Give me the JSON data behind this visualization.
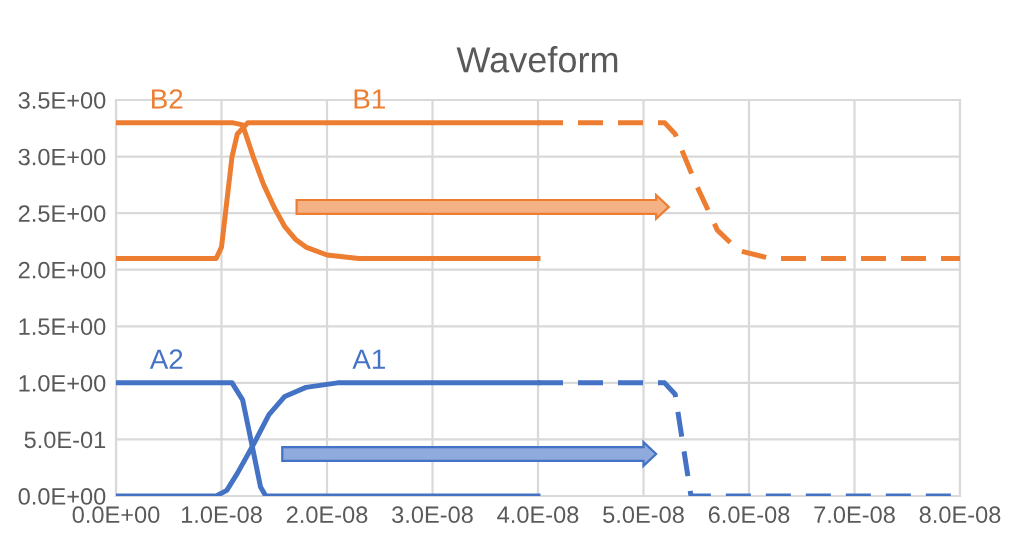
{
  "chart_data": {
    "type": "line",
    "title": "Waveform",
    "series": [
      {
        "name": "B2",
        "color": "#ed7d31",
        "x": [
          0,
          1.1e-08,
          1.2e-08,
          1.3e-08,
          1.4e-08,
          1.5e-08,
          1.6e-08,
          1.7e-08,
          1.8e-08,
          2e-08,
          2.3e-08,
          4e-08
        ],
        "values": [
          3.3,
          3.3,
          3.28,
          3.0,
          2.75,
          2.55,
          2.38,
          2.27,
          2.2,
          2.13,
          2.1,
          2.1
        ]
      },
      {
        "name": "B1",
        "color": "#ed7d31",
        "x": [
          0,
          9.5e-09,
          1e-08,
          1.05e-08,
          1.1e-08,
          1.15e-08,
          1.25e-08,
          4e-08
        ],
        "values": [
          2.1,
          2.1,
          2.2,
          2.6,
          3.0,
          3.2,
          3.3,
          3.3
        ]
      },
      {
        "color": "#ed7d31",
        "line_style": "dashed",
        "x": [
          4e-08,
          5.2e-08,
          5.3e-08,
          5.5e-08,
          5.7e-08,
          5.9e-08,
          6.2e-08,
          8e-08
        ],
        "values": [
          3.3,
          3.3,
          3.2,
          2.75,
          2.35,
          2.17,
          2.1,
          2.1
        ]
      },
      {
        "name": "A2",
        "color": "#4472c4",
        "x": [
          0,
          1.1e-08,
          1.2e-08,
          1.3e-08,
          1.37e-08,
          1.42e-08,
          4e-08
        ],
        "values": [
          1.0,
          1.0,
          0.85,
          0.4,
          0.08,
          0,
          0
        ]
      },
      {
        "name": "A1",
        "color": "#4472c4",
        "x": [
          0,
          9.5e-09,
          1.05e-08,
          1.15e-08,
          1.3e-08,
          1.45e-08,
          1.6e-08,
          1.8e-08,
          2.1e-08,
          4e-08
        ],
        "values": [
          0,
          0,
          0.05,
          0.2,
          0.45,
          0.72,
          0.88,
          0.96,
          1.0,
          1.0
        ]
      },
      {
        "color": "#4472c4",
        "line_style": "dashed",
        "x": [
          4e-08,
          5.2e-08,
          5.3e-08,
          5.4e-08,
          5.45e-08,
          8e-08
        ],
        "values": [
          1.0,
          1.0,
          0.9,
          0.3,
          0,
          0
        ]
      }
    ],
    "xlim": [
      0,
      8e-08
    ],
    "xticks": [
      {
        "value": 0,
        "label": "0.0E+00"
      },
      {
        "value": 1e-08,
        "label": "1.0E-08"
      },
      {
        "value": 2e-08,
        "label": "2.0E-08"
      },
      {
        "value": 3e-08,
        "label": "3.0E-08"
      },
      {
        "value": 4e-08,
        "label": "4.0E-08"
      },
      {
        "value": 5e-08,
        "label": "5.0E-08"
      },
      {
        "value": 6e-08,
        "label": "6.0E-08"
      },
      {
        "value": 7e-08,
        "label": "7.0E-08"
      },
      {
        "value": 8e-08,
        "label": "8.0E-08"
      }
    ],
    "ylim": [
      0,
      3.5
    ],
    "yticks": [
      {
        "value": 0,
        "label": "0.0E+00"
      },
      {
        "value": 0.5,
        "label": "5.0E-01"
      },
      {
        "value": 1.0,
        "label": "1.0E+00"
      },
      {
        "value": 1.5,
        "label": "1.5E+00"
      },
      {
        "value": 2.0,
        "label": "2.0E+00"
      },
      {
        "value": 2.5,
        "label": "2.5E+00"
      },
      {
        "value": 3.0,
        "label": "3.0E+00"
      },
      {
        "value": 3.5,
        "label": "3.5E+00"
      }
    ],
    "grid": true,
    "legend": false,
    "marker": "none",
    "line_style": "solid"
  }
}
